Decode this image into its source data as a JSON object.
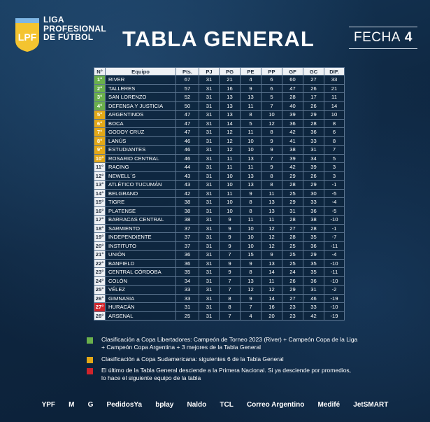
{
  "header": {
    "league_line1": "LIGA",
    "league_line2": "PROFESIONAL",
    "league_line3": "DE FÚTBOL",
    "logo_text": "LPF",
    "title": "TABLA GENERAL",
    "fecha_label": "FECHA",
    "fecha_number": "4"
  },
  "colors": {
    "libertadores": "#6ab04c",
    "sudamericana": "#e3a817",
    "descenso": "#d0242b"
  },
  "table": {
    "columns": [
      "N°",
      "Equipo",
      "Pts.",
      "PJ",
      "PG",
      "PE",
      "PP",
      "GF",
      "GC",
      "DIF."
    ],
    "rows": [
      {
        "pos": "1°",
        "team": "RIVER",
        "pts": "67",
        "pj": "31",
        "pg": "21",
        "pe": "4",
        "pp": "6",
        "gf": "60",
        "gc": "27",
        "dif": "33",
        "zone": "lib"
      },
      {
        "pos": "2°",
        "team": "TALLERES",
        "pts": "57",
        "pj": "31",
        "pg": "16",
        "pe": "9",
        "pp": "6",
        "gf": "47",
        "gc": "26",
        "dif": "21",
        "zone": "lib"
      },
      {
        "pos": "3°",
        "team": "SAN LORENZO",
        "pts": "52",
        "pj": "31",
        "pg": "13",
        "pe": "13",
        "pp": "5",
        "gf": "28",
        "gc": "17",
        "dif": "11",
        "zone": "lib"
      },
      {
        "pos": "4°",
        "team": "DEFENSA Y JUSTICIA",
        "pts": "50",
        "pj": "31",
        "pg": "13",
        "pe": "11",
        "pp": "7",
        "gf": "40",
        "gc": "26",
        "dif": "14",
        "zone": "lib"
      },
      {
        "pos": "5°",
        "team": "ARGENTINOS",
        "pts": "47",
        "pj": "31",
        "pg": "13",
        "pe": "8",
        "pp": "10",
        "gf": "39",
        "gc": "29",
        "dif": "10",
        "zone": "sud"
      },
      {
        "pos": "6°",
        "team": "BOCA",
        "pts": "47",
        "pj": "31",
        "pg": "14",
        "pe": "5",
        "pp": "12",
        "gf": "36",
        "gc": "28",
        "dif": "8",
        "zone": "sud"
      },
      {
        "pos": "7°",
        "team": "GODOY CRUZ",
        "pts": "47",
        "pj": "31",
        "pg": "12",
        "pe": "11",
        "pp": "8",
        "gf": "42",
        "gc": "36",
        "dif": "6",
        "zone": "sud"
      },
      {
        "pos": "8°",
        "team": "LANÚS",
        "pts": "46",
        "pj": "31",
        "pg": "12",
        "pe": "10",
        "pp": "9",
        "gf": "41",
        "gc": "33",
        "dif": "8",
        "zone": "sud"
      },
      {
        "pos": "9°",
        "team": "ESTUDIANTES",
        "pts": "46",
        "pj": "31",
        "pg": "12",
        "pe": "10",
        "pp": "9",
        "gf": "38",
        "gc": "31",
        "dif": "7",
        "zone": "sud"
      },
      {
        "pos": "10°",
        "team": "ROSARIO CENTRAL",
        "pts": "46",
        "pj": "31",
        "pg": "11",
        "pe": "13",
        "pp": "7",
        "gf": "39",
        "gc": "34",
        "dif": "5",
        "zone": "sud"
      },
      {
        "pos": "11°",
        "team": "RACING",
        "pts": "44",
        "pj": "31",
        "pg": "11",
        "pe": "11",
        "pp": "9",
        "gf": "42",
        "gc": "39",
        "dif": "3",
        "zone": ""
      },
      {
        "pos": "12°",
        "team": "NEWELL´S",
        "pts": "43",
        "pj": "31",
        "pg": "10",
        "pe": "13",
        "pp": "8",
        "gf": "29",
        "gc": "26",
        "dif": "3",
        "zone": ""
      },
      {
        "pos": "13°",
        "team": "ATLÉTICO TUCUMÁN",
        "pts": "43",
        "pj": "31",
        "pg": "10",
        "pe": "13",
        "pp": "8",
        "gf": "28",
        "gc": "29",
        "dif": "-1",
        "zone": ""
      },
      {
        "pos": "14°",
        "team": "BELGRANO",
        "pts": "42",
        "pj": "31",
        "pg": "11",
        "pe": "9",
        "pp": "11",
        "gf": "25",
        "gc": "30",
        "dif": "-5",
        "zone": ""
      },
      {
        "pos": "15°",
        "team": "TIGRE",
        "pts": "38",
        "pj": "31",
        "pg": "10",
        "pe": "8",
        "pp": "13",
        "gf": "29",
        "gc": "33",
        "dif": "-4",
        "zone": ""
      },
      {
        "pos": "16°",
        "team": "PLATENSE",
        "pts": "38",
        "pj": "31",
        "pg": "10",
        "pe": "8",
        "pp": "13",
        "gf": "31",
        "gc": "36",
        "dif": "-5",
        "zone": ""
      },
      {
        "pos": "17°",
        "team": "BARRACAS CENTRAL",
        "pts": "38",
        "pj": "31",
        "pg": "9",
        "pe": "11",
        "pp": "11",
        "gf": "28",
        "gc": "38",
        "dif": "-10",
        "zone": ""
      },
      {
        "pos": "18°",
        "team": "SARMIENTO",
        "pts": "37",
        "pj": "31",
        "pg": "9",
        "pe": "10",
        "pp": "12",
        "gf": "27",
        "gc": "28",
        "dif": "-1",
        "zone": ""
      },
      {
        "pos": "19°",
        "team": "INDEPENDIENTE",
        "pts": "37",
        "pj": "31",
        "pg": "9",
        "pe": "10",
        "pp": "12",
        "gf": "28",
        "gc": "35",
        "dif": "-7",
        "zone": ""
      },
      {
        "pos": "20°",
        "team": "INSTITUTO",
        "pts": "37",
        "pj": "31",
        "pg": "9",
        "pe": "10",
        "pp": "12",
        "gf": "25",
        "gc": "36",
        "dif": "-11",
        "zone": ""
      },
      {
        "pos": "21°",
        "team": "UNIÓN",
        "pts": "36",
        "pj": "31",
        "pg": "7",
        "pe": "15",
        "pp": "9",
        "gf": "25",
        "gc": "29",
        "dif": "-4",
        "zone": ""
      },
      {
        "pos": "22°",
        "team": "BANFIELD",
        "pts": "36",
        "pj": "31",
        "pg": "9",
        "pe": "9",
        "pp": "13",
        "gf": "25",
        "gc": "35",
        "dif": "-10",
        "zone": ""
      },
      {
        "pos": "23°",
        "team": "CENTRAL CÓRDOBA",
        "pts": "35",
        "pj": "31",
        "pg": "9",
        "pe": "8",
        "pp": "14",
        "gf": "24",
        "gc": "35",
        "dif": "-11",
        "zone": ""
      },
      {
        "pos": "24°",
        "team": "COLÓN",
        "pts": "34",
        "pj": "31",
        "pg": "7",
        "pe": "13",
        "pp": "11",
        "gf": "26",
        "gc": "36",
        "dif": "-10",
        "zone": ""
      },
      {
        "pos": "25°",
        "team": "VÉLEZ",
        "pts": "33",
        "pj": "31",
        "pg": "7",
        "pe": "12",
        "pp": "12",
        "gf": "29",
        "gc": "31",
        "dif": "-2",
        "zone": ""
      },
      {
        "pos": "26°",
        "team": "GIMNASIA",
        "pts": "33",
        "pj": "31",
        "pg": "8",
        "pe": "9",
        "pp": "14",
        "gf": "27",
        "gc": "46",
        "dif": "-19",
        "zone": ""
      },
      {
        "pos": "27°",
        "team": "HURACÁN",
        "pts": "31",
        "pj": "31",
        "pg": "8",
        "pe": "7",
        "pp": "16",
        "gf": "23",
        "gc": "33",
        "dif": "-10",
        "zone": "desc"
      },
      {
        "pos": "28°",
        "team": "ARSENAL",
        "pts": "25",
        "pj": "31",
        "pg": "7",
        "pe": "4",
        "pp": "20",
        "gf": "23",
        "gc": "42",
        "dif": "-19",
        "zone": ""
      }
    ]
  },
  "legend": {
    "libertadores_line1": "Clasificación a Copa Libertadores: Campeón de Torneo 2023 (River) + Campeón Copa de la Liga",
    "libertadores_line2": "+ Campeón Copa Argentina + 3 mejores de la Tabla General",
    "sudamericana": "Clasificación a Copa Sudamericana: siguientes 6 de la Tabla General",
    "descenso_line1": "El último de la Tabla General desciende a la Primera Nacional. Si ya desciende por promedios,",
    "descenso_line2": "lo hace el siguiente equipo de la tabla"
  },
  "sponsors": [
    "YPF",
    "M",
    "G",
    "PedidosYa",
    "bplay",
    "Naldo",
    "TCL",
    "Correo Argentino",
    "Medifé",
    "JetSMART"
  ]
}
